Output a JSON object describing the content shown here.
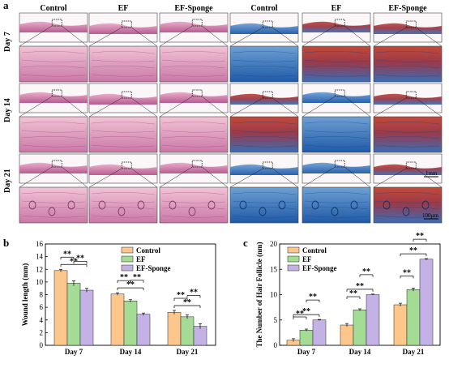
{
  "panel_a": {
    "label": "a",
    "columns": [
      "Control",
      "EF",
      "EF-Sponge",
      "Control",
      "EF",
      "EF-Sponge"
    ],
    "rows": [
      "Day 7",
      "Day 14",
      "Day 21"
    ],
    "scale_bar_top": "1mm",
    "scale_bar_bottom": "100µm"
  },
  "chart_data": [
    {
      "type": "bar",
      "panel_label": "b",
      "ylabel": "Wound length (mm)",
      "xlabel": "",
      "categories": [
        "Day 7",
        "Day 14",
        "Day 21"
      ],
      "ylim": [
        0,
        16
      ],
      "yticks": [
        "0",
        "2",
        "4",
        "6",
        "8",
        "10",
        "12",
        "14",
        "16"
      ],
      "legend_position": "top-right",
      "series": [
        {
          "name": "Control",
          "values": [
            11.8,
            8.1,
            5.2
          ],
          "errors": [
            0.2,
            0.2,
            0.3
          ],
          "color": "#FDC78B"
        },
        {
          "name": "EF",
          "values": [
            9.8,
            7.0,
            4.5
          ],
          "errors": [
            0.4,
            0.2,
            0.3
          ],
          "color": "#A4DC95"
        },
        {
          "name": "EF-Sponge",
          "values": [
            8.7,
            4.9,
            3.0
          ],
          "errors": [
            0.3,
            0.2,
            0.4
          ],
          "color": "#C4B2E6"
        }
      ],
      "significance": "**"
    },
    {
      "type": "bar",
      "panel_label": "c",
      "ylabel": "The Number of Hair Follicle (nm)",
      "xlabel": "",
      "categories": [
        "Day 7",
        "Day 14",
        "Day 21"
      ],
      "ylim": [
        0,
        20
      ],
      "yticks": [
        "0",
        "5",
        "10",
        "15",
        "20"
      ],
      "legend_position": "top-left",
      "series": [
        {
          "name": "Control",
          "values": [
            1.0,
            4.0,
            8.0
          ],
          "errors": [
            0.3,
            0.3,
            0.3
          ],
          "color": "#FDC78B"
        },
        {
          "name": "EF",
          "values": [
            3.0,
            7.0,
            11.0
          ],
          "errors": [
            0.2,
            0.2,
            0.3
          ],
          "color": "#A4DC95"
        },
        {
          "name": "EF-Sponge",
          "values": [
            5.0,
            10.0,
            17.0
          ],
          "errors": [
            0.1,
            0.1,
            0.1
          ],
          "color": "#C4B2E6"
        }
      ],
      "significance": "**"
    }
  ]
}
